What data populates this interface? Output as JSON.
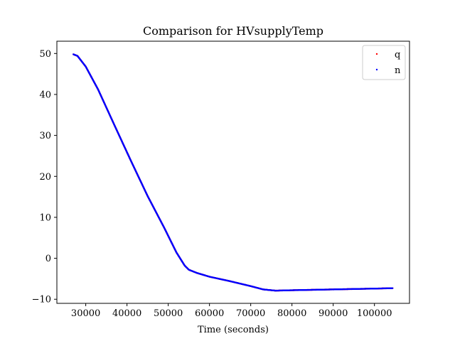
{
  "chart_data": {
    "type": "scatter",
    "title": "Comparison for HVsupplyTemp",
    "xlabel": "Time (seconds)",
    "ylabel": "",
    "xlim": [
      23000,
      108500
    ],
    "ylim": [
      -11.0,
      53.0
    ],
    "xticks": [
      30000,
      40000,
      50000,
      60000,
      70000,
      80000,
      90000,
      100000
    ],
    "yticks": [
      -10,
      0,
      10,
      20,
      30,
      40,
      50
    ],
    "xtick_labels": [
      "30000",
      "40000",
      "50000",
      "60000",
      "70000",
      "80000",
      "90000",
      "100000"
    ],
    "ytick_labels": [
      "−10",
      "0",
      "10",
      "20",
      "30",
      "40",
      "50"
    ],
    "grid": false,
    "legend_position": "top-right",
    "series": [
      {
        "name": "q",
        "color": "#ff0000",
        "x": [
          27000,
          28000,
          30000,
          33000,
          37000,
          41000,
          45000,
          49000,
          52000,
          54000,
          55000,
          57000,
          60000,
          65000,
          70000,
          73000,
          76000,
          80000,
          85000,
          90000,
          95000,
          100000,
          104500
        ],
        "y": [
          49.8,
          49.4,
          46.8,
          41.2,
          32.4,
          23.7,
          15.2,
          7.5,
          1.4,
          -1.8,
          -2.8,
          -3.6,
          -4.5,
          -5.6,
          -6.8,
          -7.6,
          -7.9,
          -7.8,
          -7.7,
          -7.6,
          -7.5,
          -7.4,
          -7.3
        ]
      },
      {
        "name": "n",
        "color": "#0000ff",
        "x": [
          27000,
          28000,
          30000,
          33000,
          37000,
          41000,
          45000,
          49000,
          52000,
          54000,
          55000,
          57000,
          60000,
          65000,
          70000,
          73000,
          76000,
          80000,
          85000,
          90000,
          95000,
          100000,
          104500
        ],
        "y": [
          49.8,
          49.4,
          46.8,
          41.2,
          32.4,
          23.7,
          15.2,
          7.5,
          1.4,
          -1.8,
          -2.8,
          -3.6,
          -4.5,
          -5.6,
          -6.8,
          -7.6,
          -7.9,
          -7.8,
          -7.7,
          -7.6,
          -7.5,
          -7.4,
          -7.3
        ]
      }
    ]
  }
}
